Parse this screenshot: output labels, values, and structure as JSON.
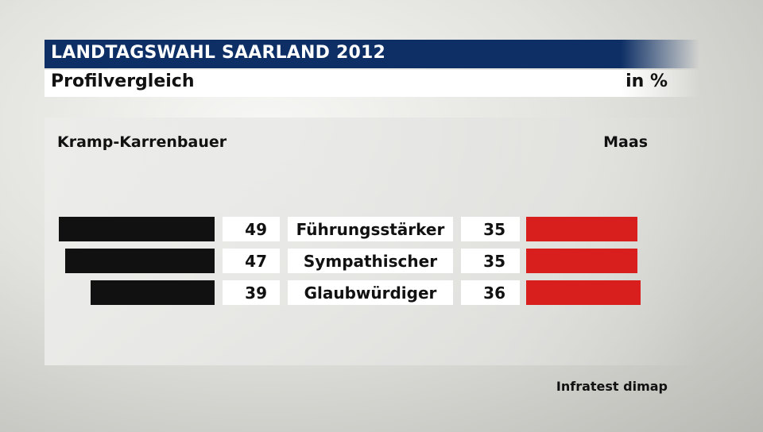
{
  "header": {
    "title": "LANDTAGSWAHL SAARLAND 2012",
    "subtitle": "Profilvergleich",
    "unit": "in %"
  },
  "chart_data": {
    "type": "bar",
    "categories": [
      "Führungsstärker",
      "Sympathischer",
      "Glaubwürdiger"
    ],
    "series": [
      {
        "name": "Kramp-Karrenbauer",
        "values": [
          49,
          47,
          39
        ],
        "color": "#111111"
      },
      {
        "name": "Maas",
        "values": [
          35,
          35,
          36
        ],
        "color": "#d91e1e"
      }
    ],
    "legend": [
      "Kramp-Karrenbauer",
      "Maas"
    ],
    "xlim": [
      0,
      50
    ]
  },
  "source": "Infratest dimap"
}
